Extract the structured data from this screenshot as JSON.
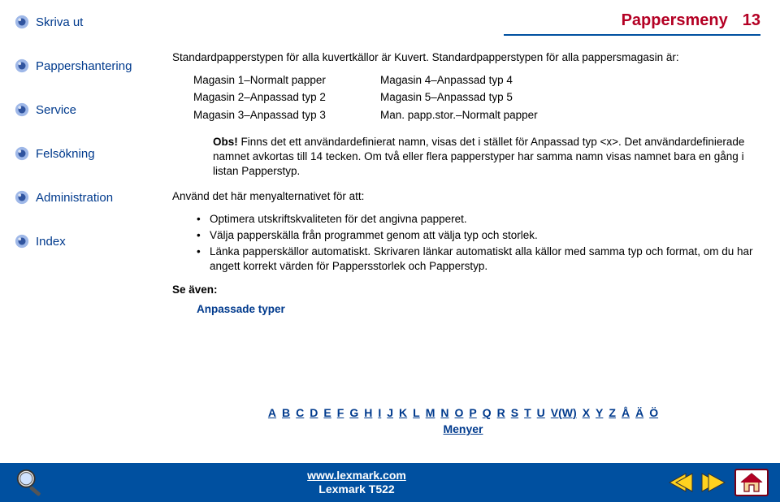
{
  "header": {
    "title": "Pappersmeny",
    "page_number": "13"
  },
  "sidebar": {
    "items": [
      {
        "label": "Skriva ut"
      },
      {
        "label": "Pappershantering"
      },
      {
        "label": "Service"
      },
      {
        "label": "Felsökning"
      },
      {
        "label": "Administration"
      },
      {
        "label": "Index"
      }
    ]
  },
  "content": {
    "intro1": "Standardpapperstypen för alla kuvertkällor är Kuvert. Standardpapperstypen för alla pappersmagasin är:",
    "mag_left": [
      "Magasin 1–Normalt papper",
      "Magasin 2–Anpassad typ 2",
      "Magasin 3–Anpassad typ 3"
    ],
    "mag_right": [
      "Magasin 4–Anpassad typ 4",
      "Magasin 5–Anpassad typ 5",
      "Man. papp.stor.–Normalt papper"
    ],
    "obs_label": "Obs!",
    "obs_text": " Finns det ett användardefinierat namn, visas det i stället för Anpassad typ <x>. Det användardefinierade namnet avkortas till 14 tecken. Om två eller flera papperstyper har samma namn visas namnet bara en gång i listan Papperstyp.",
    "use_intro": "Använd det här menyalternativet för att:",
    "bullets": [
      "Optimera utskriftskvaliteten för det angivna papperet.",
      "Välja papperskälla från programmet genom att välja typ och storlek.",
      "Länka papperskällor automatiskt. Skrivaren länkar automatiskt alla källor med samma typ och format, om du har angett korrekt värden för Pappersstorlek och Papperstyp."
    ],
    "see_also_label": "Se även:",
    "see_also_link": "Anpassade typer"
  },
  "alpha_index": [
    "A",
    "B",
    "C",
    "D",
    "E",
    "F",
    "G",
    "H",
    "I",
    "J",
    "K",
    "L",
    "M",
    "N",
    "O",
    "P",
    "Q",
    "R",
    "S",
    "T",
    "U",
    "V(W)",
    "X",
    "Y",
    "Z",
    "Å",
    "Ä",
    "Ö"
  ],
  "alpha_menyer": "Menyer",
  "footer": {
    "url_text": "www.lexmark.com",
    "model": "Lexmark T522"
  },
  "colors": {
    "link": "#003a8d",
    "accent_red": "#b40024",
    "bar_blue": "#0050a0",
    "bullet_light": "#9fb8e8",
    "bullet_dark": "#30549f"
  }
}
